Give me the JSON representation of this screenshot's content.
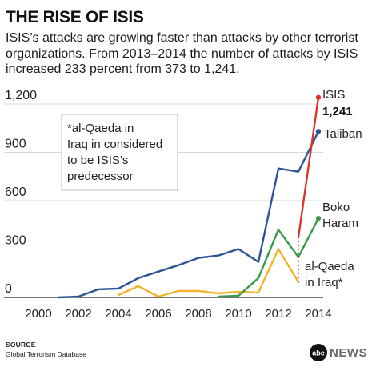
{
  "title": "THE RISE OF ISIS",
  "subtitle": "ISIS’s attacks are growing faster than attacks by other terrorist organizations. From 2013–2014 the number of attacks by ISIS increased 233 percent from 373 to 1,241.",
  "source_label": "SOURCE",
  "source_text": "Global Terrorism Database",
  "logo_text": "abcNEWS",
  "footnote_lines": [
    "*al-Qaeda in",
    "Iraq in considered",
    "to be ISIS’s",
    "predecessor"
  ],
  "colors": {
    "isis": "#d9362b",
    "taliban": "#2c5596",
    "boko_haram": "#3a9a47",
    "al_qaeda_iraq": "#f2b32b",
    "axis": "#222222",
    "grid": "#cccccc"
  },
  "chart_data": {
    "type": "line",
    "title": "",
    "xlabel": "",
    "ylabel": "",
    "xlim": [
      2000,
      2014
    ],
    "ylim": [
      0,
      1200
    ],
    "x_ticks": [
      "2000",
      "2002",
      "2004",
      "2006",
      "2008",
      "2010",
      "2012",
      "2014"
    ],
    "y_ticks": [
      "0",
      "300",
      "600",
      "900",
      "1,200"
    ],
    "grid": true,
    "series": [
      {
        "name": "Taliban",
        "color": "#2c5596",
        "x": [
          2001,
          2002,
          2003,
          2004,
          2005,
          2006,
          2007,
          2008,
          2009,
          2010,
          2011,
          2012,
          2013,
          2014
        ],
        "y": [
          0,
          5,
          50,
          55,
          120,
          160,
          200,
          245,
          260,
          300,
          220,
          800,
          780,
          1030
        ]
      },
      {
        "name": "ISIS",
        "value_label": "1,241",
        "color": "#d9362b",
        "x": [
          2013,
          2014
        ],
        "y": [
          373,
          1241
        ]
      },
      {
        "name": "Boko Haram",
        "label_lines": [
          "Boko",
          "Haram"
        ],
        "color": "#3a9a47",
        "x": [
          2009,
          2010,
          2011,
          2012,
          2013,
          2014
        ],
        "y": [
          5,
          10,
          120,
          420,
          250,
          490
        ]
      },
      {
        "name": "al-Qaeda in Iraq*",
        "label_lines": [
          "al-Qaeda",
          "in Iraq*"
        ],
        "color": "#f2b32b",
        "x": [
          2004,
          2005,
          2006,
          2007,
          2008,
          2009,
          2010,
          2011,
          2012,
          2013
        ],
        "y": [
          15,
          70,
          5,
          40,
          40,
          25,
          35,
          30,
          300,
          95
        ]
      }
    ]
  }
}
